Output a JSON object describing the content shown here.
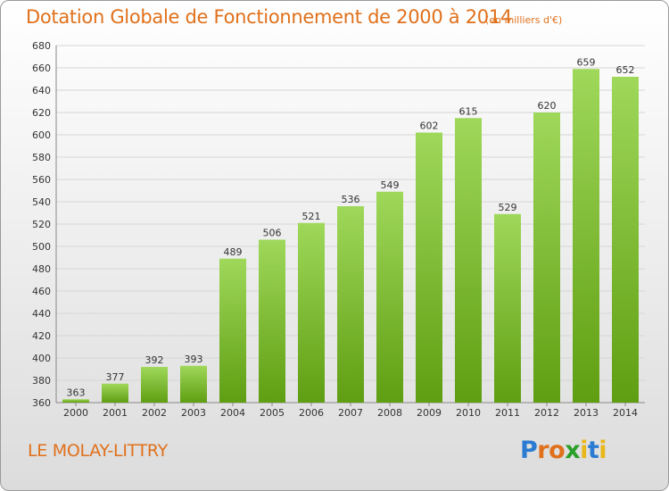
{
  "chart_data": {
    "type": "bar",
    "title": "Dotation Globale de Fonctionnement de 2000 à 2014",
    "subtitle": "(en milliers d'€)",
    "xlabel": "",
    "ylabel": "",
    "categories": [
      "2000",
      "2001",
      "2002",
      "2003",
      "2004",
      "2005",
      "2006",
      "2007",
      "2008",
      "2009",
      "2010",
      "2011",
      "2012",
      "2013",
      "2014"
    ],
    "values": [
      363,
      377,
      392,
      393,
      489,
      506,
      521,
      536,
      549,
      602,
      615,
      529,
      620,
      659,
      652
    ],
    "ylim": [
      360,
      680
    ],
    "yticks": [
      360,
      380,
      400,
      420,
      440,
      460,
      480,
      500,
      520,
      540,
      560,
      580,
      600,
      620,
      640,
      660,
      680
    ],
    "grid": true,
    "bar_color_top": "#9fd85a",
    "bar_color_bottom": "#5f9e12"
  },
  "commune": "LE MOLAY-LITTRY",
  "logo": {
    "letters": [
      "P",
      "r",
      "o",
      "x",
      "i",
      "t",
      "i"
    ],
    "colors": [
      "#2b7bd2",
      "#e0701b",
      "#e0701b",
      "#2aa02a",
      "#e8b81b",
      "#2b7bd2",
      "#e8b81b"
    ]
  }
}
